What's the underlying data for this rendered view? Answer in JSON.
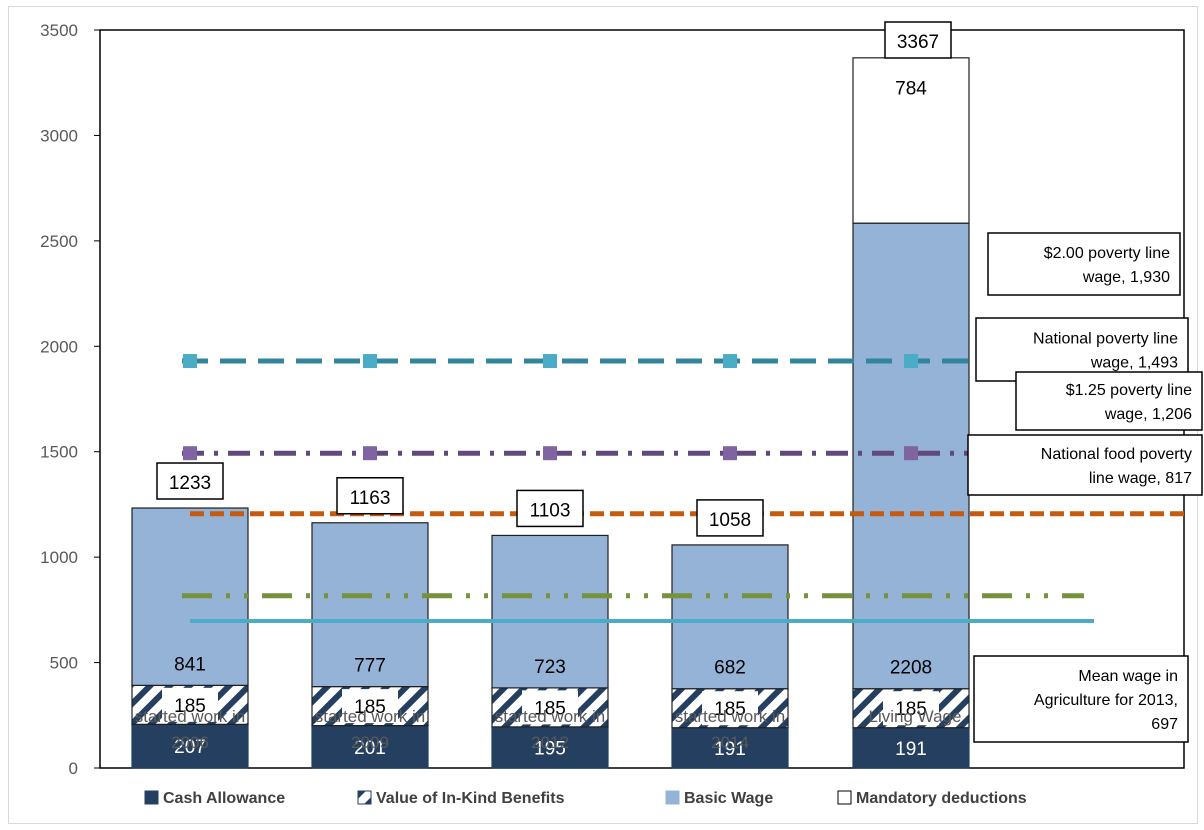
{
  "chart_data": {
    "type": "bar",
    "stacked": true,
    "categories": [
      [
        "started work in",
        "2006"
      ],
      [
        "started work in",
        "2009"
      ],
      [
        "started work in",
        "2012"
      ],
      [
        "started work in",
        "2014"
      ],
      [
        "Living Wage"
      ]
    ],
    "series": [
      {
        "name": "Cash Allowance",
        "values": [
          207,
          201,
          195,
          191,
          191
        ],
        "color": "#243f60",
        "pattern": "solid"
      },
      {
        "name": "Value of In-Kind Benefits",
        "values": [
          185,
          185,
          185,
          185,
          185
        ],
        "color": "#243f60",
        "pattern": "hatch"
      },
      {
        "name": "Basic Wage",
        "values": [
          841,
          777,
          723,
          682,
          2208
        ],
        "color": "#95b3d7",
        "pattern": "solid"
      },
      {
        "name": "Mandatory deductions",
        "values": [
          0,
          0,
          0,
          0,
          784
        ],
        "color": "#ffffff",
        "pattern": "solid"
      }
    ],
    "totals": [
      1233,
      1163,
      1103,
      1058,
      3367
    ],
    "ylim": [
      0,
      3500
    ],
    "yticks": [
      0,
      500,
      1000,
      1500,
      2000,
      2500,
      3000,
      3500
    ],
    "legend_position": "bottom",
    "reference_lines": [
      {
        "value": 1930,
        "label": [
          "$2.00 poverty line",
          "wage, 1,930"
        ],
        "color": "#31859c",
        "marker_color": "#4bacc6",
        "style": "dash"
      },
      {
        "value": 1493,
        "label": [
          "National poverty line",
          "wage, 1,493"
        ],
        "color": "#604a7b",
        "marker_color": "#8064a2",
        "style": "dashdot"
      },
      {
        "value": 1206,
        "label": [
          "$1.25 poverty line",
          "wage,  1,206"
        ],
        "color": "#c55a11",
        "style": "shortdash"
      },
      {
        "value": 817,
        "label": [
          "National  food poverty",
          "line wage, 817"
        ],
        "color": "#76923c",
        "style": "dashdotdot"
      },
      {
        "value": 697,
        "label": [
          "Mean wage in",
          "Agriculture for 2013,",
          "697"
        ],
        "color": "#4bacc6",
        "style": "solid"
      }
    ]
  }
}
